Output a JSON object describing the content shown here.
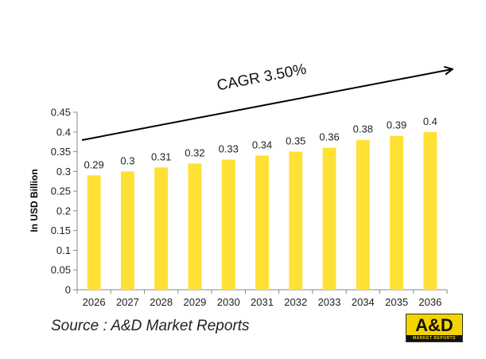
{
  "chart_data": {
    "type": "bar",
    "categories": [
      "2026",
      "2027",
      "2028",
      "2029",
      "2030",
      "2031",
      "2032",
      "2033",
      "2034",
      "2035",
      "2036"
    ],
    "values": [
      0.29,
      0.3,
      0.31,
      0.32,
      0.33,
      0.34,
      0.35,
      0.36,
      0.38,
      0.39,
      0.4
    ],
    "data_labels": [
      "0.29",
      "0.3",
      "0.31",
      "0.32",
      "0.33",
      "0.34",
      "0.35",
      "0.36",
      "0.38",
      "0.39",
      "0.4"
    ],
    "ylabel": "In USD Billion",
    "xlabel": "",
    "ylim": [
      0,
      0.45
    ],
    "yticks": [
      0,
      0.05,
      0.1,
      0.15,
      0.2,
      0.25,
      0.3,
      0.35,
      0.4,
      0.45
    ],
    "ytick_labels": [
      "0",
      "0.05",
      "0.1",
      "0.15",
      "0.2",
      "0.25",
      "0.3",
      "0.35",
      "0.4",
      "0.45"
    ],
    "grid": false,
    "bar_color": "#FFE135",
    "annotation": "CAGR 3.50%"
  },
  "source_text": "Source : A&D Market Reports",
  "logo": {
    "main": "A&D",
    "sub": "MARKET REPORTS"
  }
}
